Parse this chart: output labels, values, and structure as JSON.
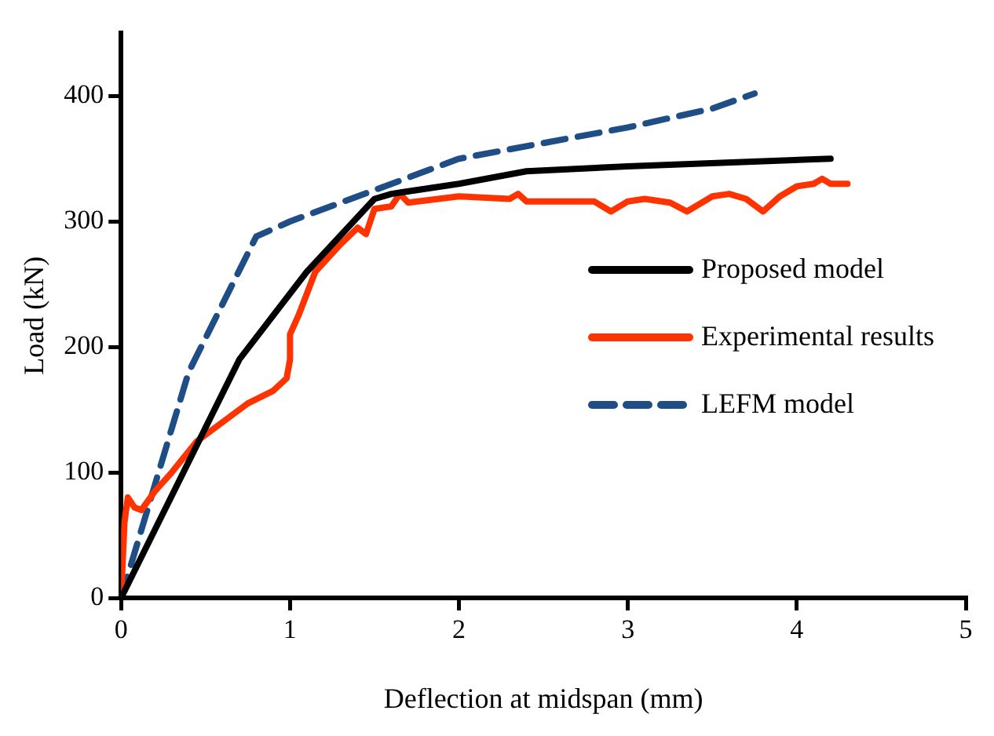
{
  "chart_data": {
    "type": "line",
    "xlabel": "Deflection at midspan (mm)",
    "ylabel": "Load (kN)",
    "xlim": [
      0,
      5
    ],
    "xticks": [
      0,
      1,
      2,
      3,
      4,
      5
    ],
    "ylim": [
      0,
      450
    ],
    "yticks": [
      0,
      100,
      200,
      300,
      400
    ],
    "grid": false,
    "legend": "right",
    "marker": "none",
    "series": [
      {
        "name": "Proposed model",
        "color": "#000000",
        "line_style": "solid",
        "x": [
          0,
          0.7,
          1.1,
          1.5,
          1.6,
          2,
          2.4,
          3,
          4.2
        ],
        "values": [
          0,
          190,
          260,
          318,
          322,
          330,
          340,
          344,
          350
        ]
      },
      {
        "name": "Experimental results",
        "color": "#ff3300",
        "line_style": "solid",
        "x": [
          0,
          0.02,
          0.04,
          0.08,
          0.12,
          0.2,
          0.3,
          0.45,
          0.55,
          0.65,
          0.75,
          0.9,
          0.98,
          1.0,
          1.0,
          1.05,
          1.15,
          1.3,
          1.4,
          1.45,
          1.5,
          1.6,
          1.65,
          1.7,
          2,
          2.3,
          2.35,
          2.4,
          2.8,
          2.9,
          3.0,
          3.1,
          3.25,
          3.35,
          3.5,
          3.6,
          3.7,
          3.8,
          3.9,
          4,
          4.1,
          4.15,
          4.2,
          4.3
        ],
        "values": [
          0,
          60,
          80,
          72,
          70,
          85,
          100,
          125,
          135,
          145,
          155,
          165,
          175,
          190,
          210,
          225,
          260,
          282,
          295,
          290,
          310,
          312,
          322,
          315,
          320,
          318,
          322,
          316,
          316,
          308,
          316,
          318,
          315,
          308,
          320,
          322,
          318,
          308,
          320,
          328,
          330,
          334,
          330,
          330
        ]
      },
      {
        "name": "LEFM model",
        "color": "#1f4e86",
        "line_style": "dashed",
        "x": [
          0,
          0.4,
          0.8,
          1,
          1.5,
          2,
          3,
          3.5,
          3.75
        ],
        "values": [
          0,
          180,
          288,
          300,
          325,
          350,
          375,
          390,
          402
        ]
      }
    ]
  }
}
